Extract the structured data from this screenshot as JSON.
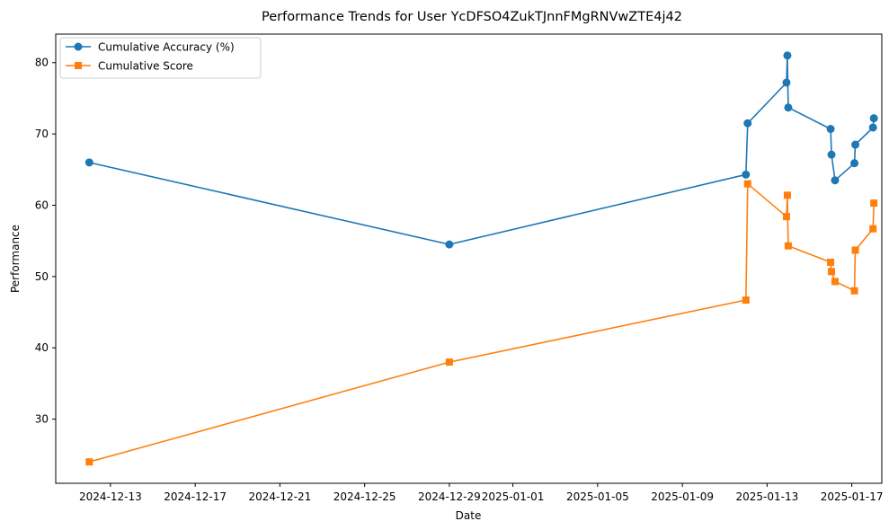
{
  "chart_data": {
    "type": "line",
    "title": "Performance Trends for User YcDFSO4ZukTJnnFMgRNVwZTE4j42",
    "xlabel": "Date",
    "ylabel": "Performance",
    "x_ticks": [
      "2024-12-13",
      "2024-12-17",
      "2024-12-21",
      "2024-12-25",
      "2024-12-29",
      "2025-01-01",
      "2025-01-05",
      "2025-01-09",
      "2025-01-13",
      "2025-01-17"
    ],
    "y_ticks": [
      30,
      40,
      50,
      60,
      70,
      80
    ],
    "xlim": [
      "2024-12-10 10:00",
      "2025-01-18 10:00"
    ],
    "ylim": [
      21,
      84
    ],
    "grid": false,
    "legend_position": "top-left",
    "series": [
      {
        "name": "Cumulative Accuracy (%)",
        "color": "#1f77b4",
        "marker": "circle",
        "points": [
          [
            "2024-12-12 00:00",
            66.0
          ],
          [
            "2024-12-29 00:00",
            54.5
          ],
          [
            "2025-01-12 00:00",
            64.3
          ],
          [
            "2025-01-12 02:00",
            71.5
          ],
          [
            "2025-01-13 22:00",
            77.2
          ],
          [
            "2025-01-13 23:00",
            81.0
          ],
          [
            "2025-01-14 00:00",
            73.7
          ],
          [
            "2025-01-16 00:00",
            70.7
          ],
          [
            "2025-01-16 01:00",
            67.1
          ],
          [
            "2025-01-16 05:00",
            63.5
          ],
          [
            "2025-01-17 03:00",
            65.9
          ],
          [
            "2025-01-17 04:00",
            68.5
          ],
          [
            "2025-01-18 00:00",
            70.9
          ],
          [
            "2025-01-18 01:00",
            72.2
          ]
        ]
      },
      {
        "name": "Cumulative Score",
        "color": "#ff7f0e",
        "marker": "square",
        "points": [
          [
            "2024-12-12 00:00",
            24.0
          ],
          [
            "2024-12-29 00:00",
            38.0
          ],
          [
            "2025-01-12 00:00",
            46.7
          ],
          [
            "2025-01-12 02:00",
            63.0
          ],
          [
            "2025-01-13 22:00",
            58.4
          ],
          [
            "2025-01-13 23:00",
            61.4
          ],
          [
            "2025-01-14 00:00",
            54.3
          ],
          [
            "2025-01-16 00:00",
            52.0
          ],
          [
            "2025-01-16 01:00",
            50.7
          ],
          [
            "2025-01-16 05:00",
            49.3
          ],
          [
            "2025-01-17 03:00",
            48.0
          ],
          [
            "2025-01-17 04:00",
            53.7
          ],
          [
            "2025-01-18 00:00",
            56.7
          ],
          [
            "2025-01-18 01:00",
            60.3
          ]
        ]
      }
    ]
  }
}
